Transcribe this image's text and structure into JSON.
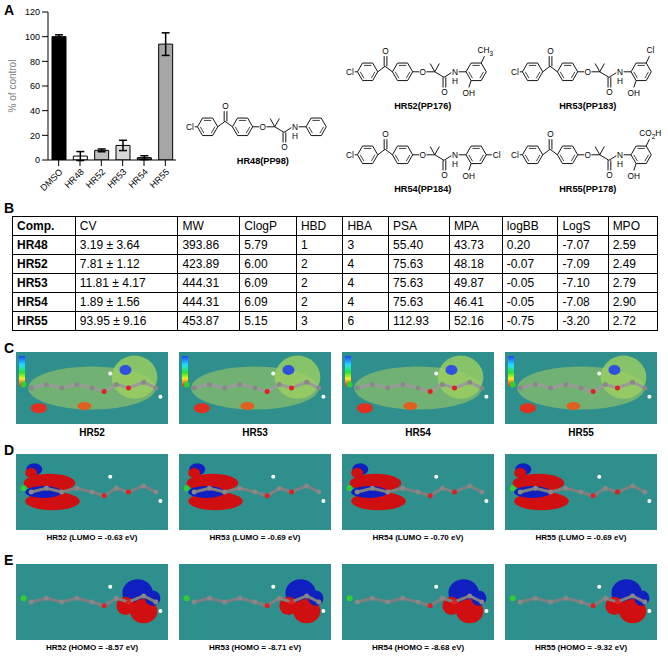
{
  "chart_data": {
    "type": "bar",
    "ylabel": "% of control",
    "categories": [
      "DMSO",
      "HR48",
      "HR52",
      "HR53",
      "HR54",
      "HR55"
    ],
    "values": [
      100,
      3.19,
      7.81,
      11.81,
      1.89,
      93.95
    ],
    "errors": [
      1.5,
      3.64,
      1.12,
      4.17,
      1.56,
      9.16
    ],
    "colors": [
      "#000000",
      "#ffffff",
      "#bdbdbd",
      "#d9d9d9",
      "#4d4d4d",
      "#a6a6a6"
    ],
    "ylim": [
      0,
      120
    ],
    "yticks": [
      0,
      20,
      40,
      60,
      80,
      100,
      120
    ]
  },
  "panel_labels": [
    "A",
    "B"
  ],
  "structure_atoms": {
    "halogen": "Cl",
    "oxygen": "O",
    "nitrogen": "N",
    "hydrogen": "H"
  },
  "structures": [
    {
      "name": "HR48(PP98)",
      "substituents": []
    },
    {
      "name": "HR52(PP176)",
      "substituents": [
        "OH",
        "CH3"
      ]
    },
    {
      "name": "HR53(PP183)",
      "substituents": [
        "OH",
        "Cl"
      ]
    },
    {
      "name": "HR54(PP184)",
      "substituents": [
        "OH",
        "Cl"
      ]
    },
    {
      "name": "HR55(PP178)",
      "substituents": [
        "OH",
        "CO2H"
      ]
    }
  ],
  "table": {
    "header": [
      "Comp.",
      "CV",
      "MW",
      "ClogP",
      "HBD",
      "HBA",
      "PSA",
      "MPA",
      "logBB",
      "LogS",
      "MPO"
    ],
    "rows": [
      [
        "HR48",
        "3.19 ± 3.64",
        "393.86",
        "5.79",
        "1",
        "3",
        "55.40",
        "43.73",
        "0.20",
        "-7.07",
        "2.59"
      ],
      [
        "HR52",
        "7.81 ± 1.12",
        "423.89",
        "6.00",
        "2",
        "4",
        "75.63",
        "48.18",
        "-0.07",
        "-7.09",
        "2.49"
      ],
      [
        "HR53",
        "11.81 ± 4.17",
        "444.31",
        "6.09",
        "2",
        "4",
        "75.63",
        "49.87",
        "-0.05",
        "-7.10",
        "2.79"
      ],
      [
        "HR54",
        "1.89 ± 1.56",
        "444.31",
        "6.09",
        "2",
        "4",
        "75.63",
        "46.41",
        "-0.05",
        "-7.08",
        "2.90"
      ],
      [
        "HR55",
        "93.95 ± 9.16",
        "453.87",
        "5.15",
        "3",
        "6",
        "112.93",
        "52.16",
        "-0.75",
        "-3.20",
        "2.72"
      ]
    ]
  },
  "surface_panels": [
    {
      "label": "C",
      "captions": [
        "HR52",
        "HR53",
        "HR54",
        "HR55"
      ]
    },
    {
      "label": "D",
      "captions": [
        "HR52 (LUMO = -0.63 eV)",
        "HR53 (LUMO = -0.69 eV)",
        "HR54 (LUMO = -0.70 eV)",
        "HR55 (LUMO = -0.69 eV)"
      ]
    },
    {
      "label": "E",
      "captions": [
        "HR52 (HOMO = -8.57 eV)",
        "HR53 (HOMO = -8.71 eV)",
        "HR54 (HOMO = -8.68 eV)",
        "HR55 (HOMO = -9.32 eV)"
      ]
    }
  ]
}
